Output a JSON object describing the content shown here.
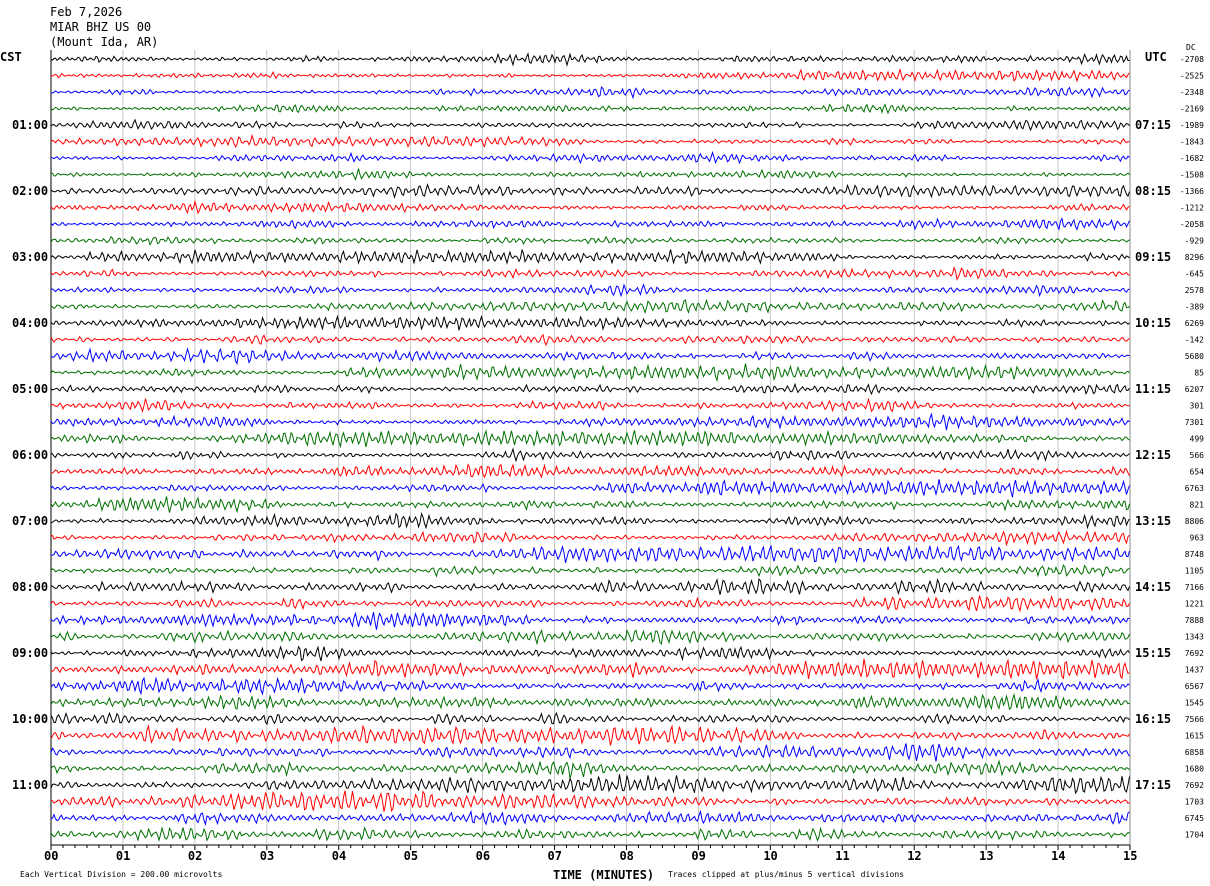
{
  "header": {
    "date": "Feb 7,2026",
    "station": "MIAR BHZ US 00",
    "location": "(Mount Ida, AR)"
  },
  "left_timezone": "CST",
  "right_timezone": "UTC",
  "dc_label": "DC",
  "trace_colors": [
    "#000000",
    "#ff0000",
    "#0000ff",
    "#007000"
  ],
  "footer": {
    "scale_note": "Each Vertical Division =  200.00 microvolts",
    "clip_note": "Traces clipped at plus/minus 5 vertical divisions"
  },
  "chart_data": {
    "type": "line",
    "subtype": "helicorder",
    "xlabel": "TIME (MINUTES)",
    "xlim": [
      0,
      15
    ],
    "x_ticks": [
      "00",
      "01",
      "02",
      "03",
      "04",
      "05",
      "06",
      "07",
      "08",
      "09",
      "10",
      "11",
      "12",
      "13",
      "14",
      "15"
    ],
    "grid": true,
    "rows_per_hour": 4,
    "left_hour_labels": [
      "01:00",
      "02:00",
      "03:00",
      "04:00",
      "05:00",
      "06:00",
      "07:00",
      "08:00",
      "09:00",
      "10:00",
      "11:00"
    ],
    "right_hour_labels": [
      "07:15",
      "08:15",
      "09:15",
      "10:15",
      "11:15",
      "12:15",
      "13:15",
      "14:15",
      "15:15",
      "16:15",
      "17:15"
    ],
    "dc_offsets": [
      "-2708",
      "-2525",
      "-2348",
      "-2169",
      "-1989",
      "-1843",
      "-1682",
      "-1508",
      "-1366",
      "-1212",
      "-2058",
      "-929",
      "8296",
      "-645",
      "2578",
      "-389",
      "6269",
      "-142",
      "5680",
      "85",
      "6207",
      "301",
      "7301",
      "499",
      "566",
      "654",
      "6763",
      "821",
      "8806",
      "963",
      "8748",
      "1105",
      "7166",
      "1221",
      "7888",
      "1343",
      "7692",
      "1437",
      "6567",
      "1545",
      "7566",
      "1615",
      "6858",
      "1680",
      "7692",
      "1703",
      "6745",
      "1704"
    ]
  }
}
